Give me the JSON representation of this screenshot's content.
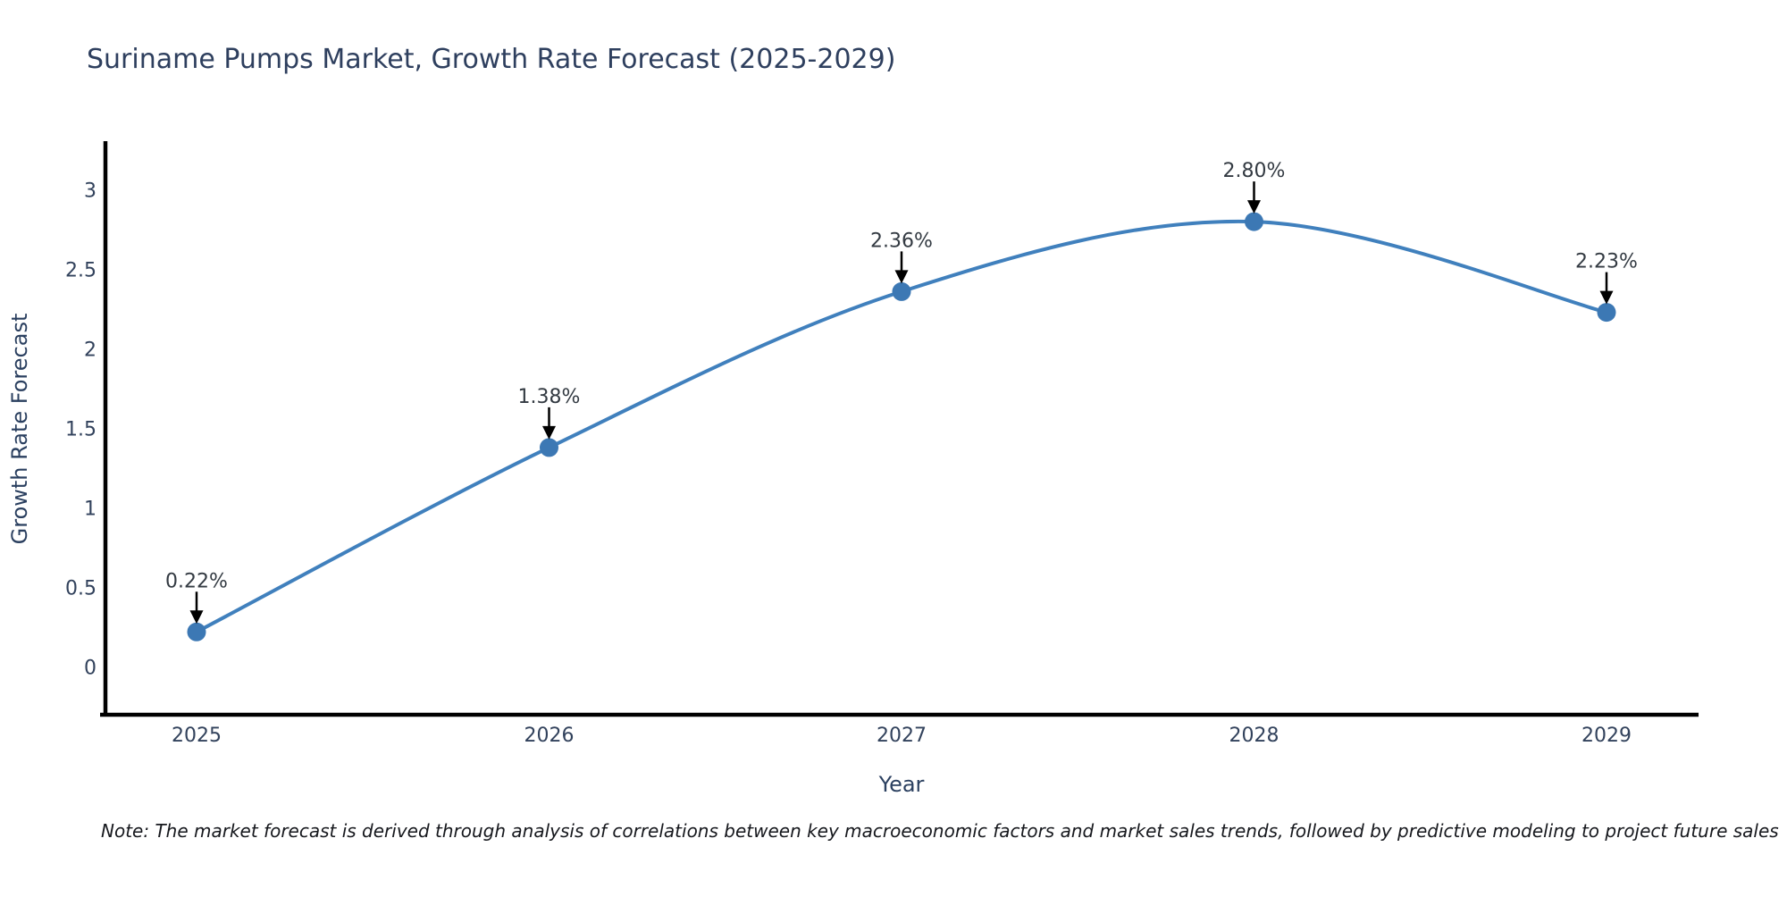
{
  "title": "Suriname Pumps Market, Growth Rate Forecast (2025-2029)",
  "note": "Note: The market forecast is derived through analysis of correlations between key macroeconomic factors and market sales trends, followed by predictive modeling to project future sales",
  "chart_data": {
    "type": "line",
    "title": "Suriname Pumps Market, Growth Rate Forecast (2025-2029)",
    "xlabel": "Year",
    "ylabel": "Growth Rate Forecast",
    "categories": [
      "2025",
      "2026",
      "2027",
      "2028",
      "2029"
    ],
    "values": [
      0.22,
      1.38,
      2.36,
      2.8,
      2.23
    ],
    "point_labels": [
      "0.22%",
      "1.38%",
      "2.36%",
      "2.80%",
      "2.23%"
    ],
    "yticks": [
      0,
      0.5,
      1,
      1.5,
      2,
      2.5,
      3
    ],
    "ylim": [
      -0.3,
      3.3
    ],
    "grid": false,
    "legend": "none",
    "smooth": true,
    "line_color": "#4080bd",
    "marker_color": "#3c78b4",
    "arrow_color": "#000000",
    "axis_color": "#000000"
  }
}
